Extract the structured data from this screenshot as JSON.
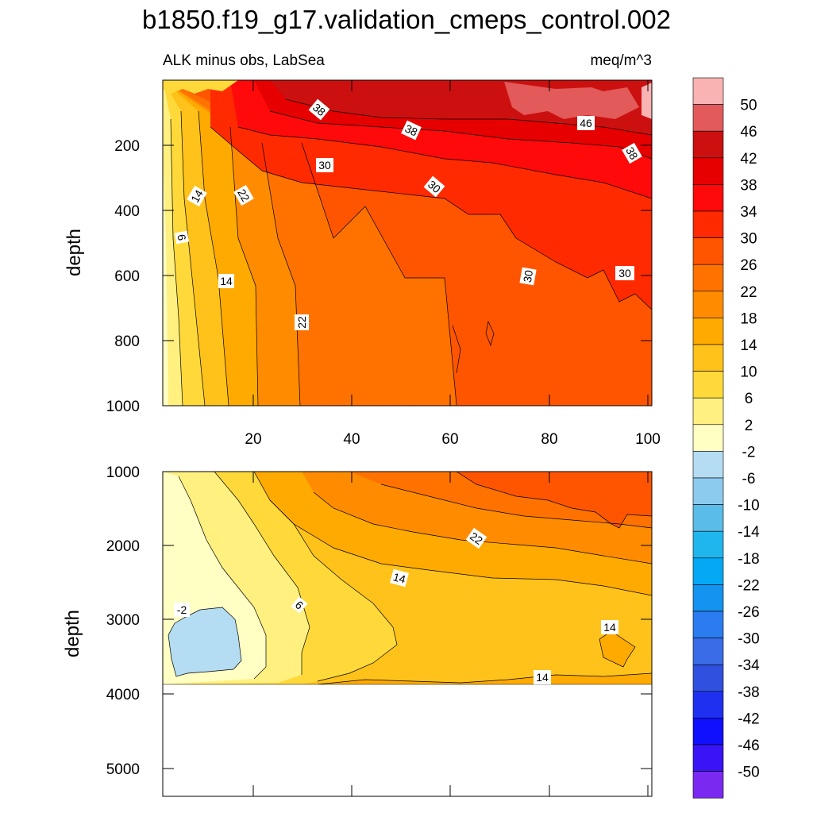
{
  "chart_data": {
    "type": "contour",
    "title": "b1850.f19_g17.validation_cmeps_control.002",
    "subtitle_left": "ALK minus obs, LabSea",
    "subtitle_right": "meq/m^3",
    "upper_panel": {
      "ylabel": "depth",
      "ylim": [
        0,
        1000
      ],
      "xlim": [
        1,
        101
      ],
      "yticks": [
        "200",
        "400",
        "600",
        "800",
        "1000"
      ],
      "xticks": [
        "20",
        "40",
        "60",
        "80",
        "100"
      ],
      "contour_labels": [
        "38",
        "38",
        "46",
        "38",
        "30",
        "30",
        "14",
        "22",
        "6",
        "14",
        "30",
        "30",
        "22"
      ]
    },
    "lower_panel": {
      "ylabel": "depth",
      "ylim": [
        1000,
        5400
      ],
      "xlim": [
        1,
        101
      ],
      "yticks": [
        "1000",
        "2000",
        "3000",
        "4000",
        "5000"
      ],
      "seafloor_depth": 3880,
      "contour_labels": [
        "22",
        "14",
        "6",
        "-2",
        "14",
        "14"
      ]
    },
    "colorbar": {
      "labels": [
        "50",
        "46",
        "42",
        "38",
        "34",
        "30",
        "26",
        "22",
        "18",
        "14",
        "10",
        "6",
        "2",
        "-2",
        "-6",
        "-10",
        "-14",
        "-18",
        "-22",
        "-26",
        "-30",
        "-34",
        "-38",
        "-42",
        "-46",
        "-50"
      ],
      "colors": [
        "#f9b3b3",
        "#e25a5a",
        "#cc1010",
        "#e60000",
        "#ff0a0a",
        "#ff2a00",
        "#ff5500",
        "#ff7200",
        "#ff8c00",
        "#ffaa00",
        "#ffc21a",
        "#ffd93a",
        "#fff080",
        "#ffffc4",
        "#b4dcf2",
        "#8ccbee",
        "#5abce8",
        "#1fb6ee",
        "#04a8f4",
        "#1493f0",
        "#2a7cf0",
        "#3a6ce8",
        "#3050e0",
        "#2030f0",
        "#1010ff",
        "#3a14f6",
        "#7a2af0"
      ]
    }
  }
}
